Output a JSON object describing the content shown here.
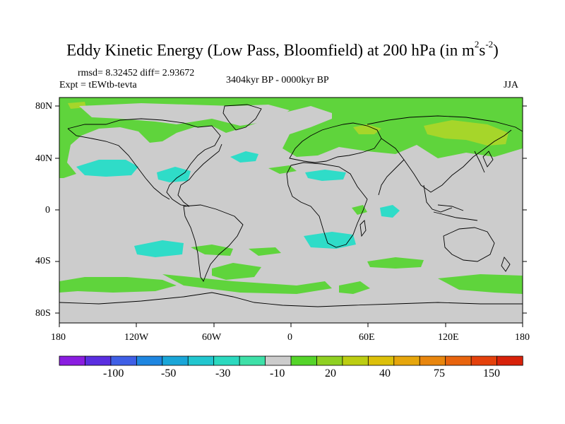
{
  "title": {
    "main": "Eddy Kinetic Energy (Low Pass, Bloomfield) at 200 hPa (in m",
    "sup1": "2",
    "mid": "s",
    "sup2": "-2",
    "end": ")"
  },
  "stats": "rmsd= 8.32452 diff= 2.93672",
  "experiment": "Expt = tEWtb-tevta",
  "period": "3404kyr BP - 0000kyr BP",
  "season": "JJA",
  "lat_labels": [
    "80N",
    "40N",
    "0",
    "40S",
    "80S"
  ],
  "lon_labels": [
    "180",
    "120W",
    "60W",
    "0",
    "60E",
    "120E",
    "180"
  ],
  "colorbar": {
    "colors": [
      "#8a1de0",
      "#5a2ee0",
      "#3f5fe6",
      "#1e86e0",
      "#1aa6d8",
      "#22c6cf",
      "#2cd9bf",
      "#3ee0a8",
      "#cccccc",
      "#55d42a",
      "#8fd022",
      "#bccd12",
      "#dcc00a",
      "#e6a60c",
      "#e8860e",
      "#e8640e",
      "#e4410c",
      "#d8220a"
    ],
    "labels": [
      "-100",
      "-50",
      "-30",
      "-10",
      "20",
      "40",
      "75",
      "150"
    ]
  },
  "palette": {
    "land_bg": "#cccccc",
    "green": "#5fd43c",
    "cyan": "#2fdcc8",
    "yellow_green": "#a6d62a"
  }
}
